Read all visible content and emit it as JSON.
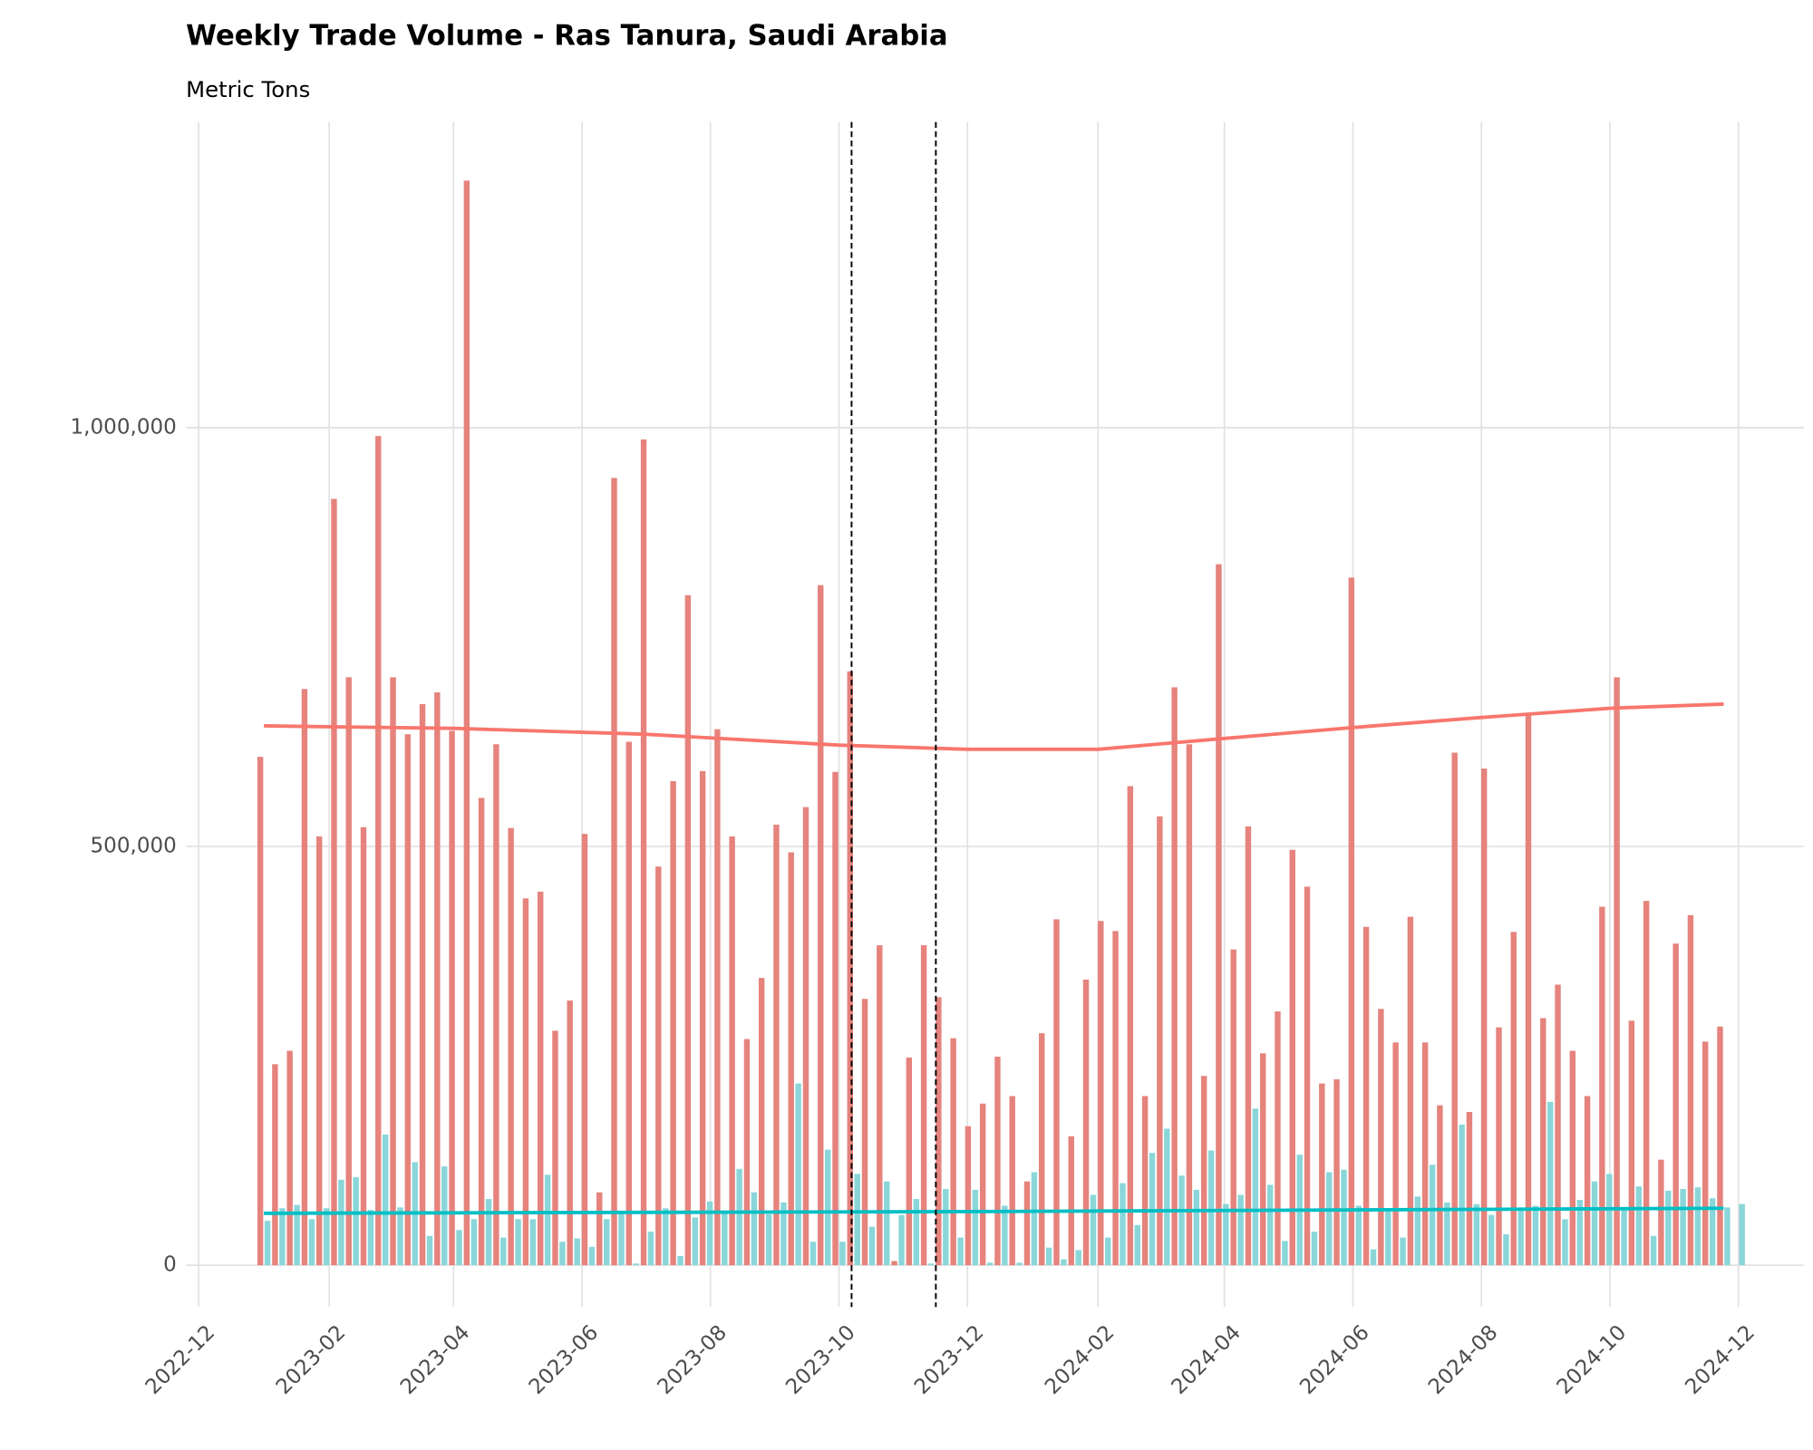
{
  "chart_data": {
    "type": "bar",
    "title": "Weekly Trade Volume - Ras Tanura, Saudi Arabia",
    "subtitle": "Metric Tons",
    "x": [
      "2023-01-01",
      "2023-01-08",
      "2023-01-15",
      "2023-01-22",
      "2023-01-29",
      "2023-02-05",
      "2023-02-12",
      "2023-02-19",
      "2023-02-26",
      "2023-03-05",
      "2023-03-12",
      "2023-03-19",
      "2023-03-26",
      "2023-04-02",
      "2023-04-09",
      "2023-04-16",
      "2023-04-23",
      "2023-04-30",
      "2023-05-07",
      "2023-05-14",
      "2023-05-21",
      "2023-05-28",
      "2023-06-04",
      "2023-06-11",
      "2023-06-18",
      "2023-06-25",
      "2023-07-02",
      "2023-07-09",
      "2023-07-16",
      "2023-07-23",
      "2023-07-30",
      "2023-08-06",
      "2023-08-13",
      "2023-08-20",
      "2023-08-27",
      "2023-09-03",
      "2023-09-10",
      "2023-09-17",
      "2023-09-24",
      "2023-10-01",
      "2023-10-08",
      "2023-10-15",
      "2023-10-22",
      "2023-10-29",
      "2023-11-05",
      "2023-11-12",
      "2023-11-19",
      "2023-11-26",
      "2023-12-03",
      "2023-12-10",
      "2023-12-17",
      "2023-12-24",
      "2023-12-31",
      "2024-01-07",
      "2024-01-14",
      "2024-01-21",
      "2024-01-28",
      "2024-02-04",
      "2024-02-11",
      "2024-02-18",
      "2024-02-25",
      "2024-03-03",
      "2024-03-10",
      "2024-03-17",
      "2024-03-24",
      "2024-03-31",
      "2024-04-07",
      "2024-04-14",
      "2024-04-21",
      "2024-04-28",
      "2024-05-05",
      "2024-05-12",
      "2024-05-19",
      "2024-05-26",
      "2024-06-02",
      "2024-06-09",
      "2024-06-16",
      "2024-06-23",
      "2024-06-30",
      "2024-07-07",
      "2024-07-14",
      "2024-07-21",
      "2024-07-28",
      "2024-08-04",
      "2024-08-11",
      "2024-08-18",
      "2024-08-25",
      "2024-09-01",
      "2024-09-08",
      "2024-09-15",
      "2024-09-22",
      "2024-09-29",
      "2024-10-06",
      "2024-10-13",
      "2024-10-20",
      "2024-10-27",
      "2024-11-03",
      "2024-11-10",
      "2024-11-17",
      "2024-11-24",
      "2024-12-01"
    ],
    "series": [
      {
        "color": "#e5837c",
        "values": [
          607000,
          240000,
          256000,
          688000,
          512000,
          915000,
          702000,
          523000,
          990000,
          702000,
          634000,
          670000,
          684000,
          638000,
          1295000,
          558000,
          622000,
          522000,
          438000,
          446000,
          280000,
          316000,
          515000,
          87000,
          940000,
          625000,
          986000,
          476000,
          578000,
          800000,
          590000,
          640000,
          512000,
          270000,
          343000,
          526000,
          493000,
          547000,
          812000,
          589000,
          709000,
          318000,
          382000,
          5000,
          248000,
          382000,
          320000,
          271000,
          166000,
          193000,
          249000,
          202000,
          100000,
          277000,
          413000,
          154000,
          341000,
          411000,
          399000,
          572000,
          202000,
          536000,
          690000,
          622000,
          226000,
          837000,
          377000,
          524000,
          253000,
          303000,
          496000,
          452000,
          217000,
          222000,
          821000,
          404000,
          306000,
          266000,
          416000,
          266000,
          191000,
          612000,
          183000,
          593000,
          284000,
          398000,
          658000,
          295000,
          335000,
          256000,
          202000,
          428000,
          702000,
          292000,
          435000,
          126000,
          384000,
          418000,
          267000,
          285000,
          0
        ]
      },
      {
        "color": "#8ad6d9",
        "values": [
          53000,
          68000,
          72000,
          55000,
          68000,
          102000,
          105000,
          66000,
          156000,
          69000,
          123000,
          35000,
          118000,
          42000,
          55000,
          79000,
          33000,
          55000,
          55000,
          108000,
          28000,
          32000,
          22000,
          55000,
          65000,
          2000,
          40000,
          68000,
          11000,
          57000,
          76000,
          65000,
          115000,
          87000,
          61000,
          75000,
          217000,
          28000,
          138000,
          28000,
          109000,
          46000,
          100000,
          60000,
          79000,
          2000,
          91000,
          33000,
          90000,
          3000,
          71000,
          3000,
          111000,
          21000,
          7000,
          18000,
          84000,
          33000,
          98000,
          48000,
          134000,
          163000,
          107000,
          90000,
          137000,
          73000,
          84000,
          187000,
          96000,
          29000,
          132000,
          40000,
          111000,
          114000,
          71000,
          19000,
          64000,
          33000,
          82000,
          120000,
          75000,
          168000,
          73000,
          60000,
          37000,
          68000,
          71000,
          195000,
          55000,
          78000,
          100000,
          109000,
          69000,
          94000,
          35000,
          89000,
          91000,
          93000,
          80000,
          69000,
          73000
        ]
      }
    ],
    "trends": [
      {
        "color": "#f8766d",
        "x": [
          "2023-01-01",
          "2023-04-01",
          "2023-07-01",
          "2023-10-01",
          "2023-12-01",
          "2024-02-01",
          "2024-04-01",
          "2024-06-01",
          "2024-08-01",
          "2024-10-01",
          "2024-11-24"
        ],
        "values": [
          644000,
          641000,
          634000,
          621000,
          616000,
          616000,
          629000,
          642000,
          654000,
          665000,
          670000
        ]
      },
      {
        "color": "#00bfc4",
        "x": [
          "2023-01-01",
          "2023-12-01",
          "2024-11-24"
        ],
        "values": [
          62000,
          64000,
          68000
        ]
      }
    ],
    "vlines": [
      "2023-10-07",
      "2023-11-16"
    ],
    "xlim": [
      "2022-11-25",
      "2025-01-01"
    ],
    "xticks": [
      {
        "value": "2022-12-01",
        "label": "2022-12"
      },
      {
        "value": "2023-02-01",
        "label": "2023-02"
      },
      {
        "value": "2023-04-01",
        "label": "2023-04"
      },
      {
        "value": "2023-06-01",
        "label": "2023-06"
      },
      {
        "value": "2023-08-01",
        "label": "2023-08"
      },
      {
        "value": "2023-10-01",
        "label": "2023-10"
      },
      {
        "value": "2023-12-01",
        "label": "2023-12"
      },
      {
        "value": "2024-02-01",
        "label": "2024-02"
      },
      {
        "value": "2024-04-01",
        "label": "2024-04"
      },
      {
        "value": "2024-06-01",
        "label": "2024-06"
      },
      {
        "value": "2024-08-01",
        "label": "2024-08"
      },
      {
        "value": "2024-10-01",
        "label": "2024-10"
      },
      {
        "value": "2024-12-01",
        "label": "2024-12"
      }
    ],
    "ylim": [
      -50000,
      1365000
    ],
    "yticks": [
      0,
      {
        "value": 500000,
        "label": "500,000"
      },
      {
        "value": 1000000,
        "label": "1,000,000"
      }
    ],
    "grid": true
  }
}
